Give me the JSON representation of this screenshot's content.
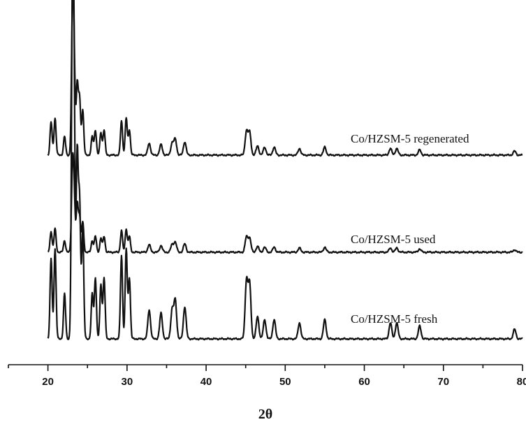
{
  "chart_data": {
    "type": "line",
    "title": "",
    "xlabel": "2θ",
    "ylabel": "",
    "xlim": [
      15,
      80
    ],
    "x_ticks": [
      20,
      30,
      40,
      50,
      60,
      70,
      80
    ],
    "x_tick_labels": [
      "20",
      "30",
      "40",
      "50",
      "60",
      "70",
      "80"
    ],
    "grid": false,
    "legend": "none",
    "peaks_2theta": [
      20.4,
      20.9,
      22.1,
      23.1,
      23.3,
      23.7,
      24.0,
      24.4,
      25.6,
      26.0,
      26.7,
      27.1,
      29.3,
      29.9,
      30.3,
      32.8,
      34.3,
      35.7,
      36.1,
      37.3,
      45.1,
      45.5,
      46.5,
      47.4,
      48.6,
      51.8,
      55.0,
      63.3,
      64.1,
      67.0,
      79.0
    ],
    "series": [
      {
        "name": "Co/HZSM-5 fresh",
        "relative_intensity": [
          0.25,
          0.28,
          0.14,
          1.0,
          0.7,
          0.57,
          0.42,
          0.34,
          0.14,
          0.19,
          0.17,
          0.19,
          0.26,
          0.28,
          0.19,
          0.09,
          0.08,
          0.09,
          0.12,
          0.1,
          0.18,
          0.17,
          0.07,
          0.06,
          0.06,
          0.05,
          0.06,
          0.05,
          0.05,
          0.04,
          0.03
        ]
      },
      {
        "name": "Co/HZSM-5 used",
        "relative_intensity": [
          0.25,
          0.28,
          0.14,
          0.92,
          0.65,
          0.57,
          0.42,
          0.36,
          0.14,
          0.19,
          0.17,
          0.19,
          0.26,
          0.28,
          0.19,
          0.09,
          0.08,
          0.09,
          0.12,
          0.1,
          0.18,
          0.17,
          0.07,
          0.06,
          0.06,
          0.05,
          0.06,
          0.05,
          0.05,
          0.04,
          0.03
        ]
      },
      {
        "name": "Co/HZSM-5 regenerated",
        "relative_intensity": [
          0.25,
          0.28,
          0.14,
          1.0,
          0.7,
          0.53,
          0.42,
          0.34,
          0.14,
          0.19,
          0.17,
          0.19,
          0.26,
          0.28,
          0.19,
          0.09,
          0.08,
          0.09,
          0.12,
          0.1,
          0.18,
          0.17,
          0.07,
          0.06,
          0.06,
          0.05,
          0.06,
          0.05,
          0.05,
          0.04,
          0.03
        ]
      }
    ]
  }
}
